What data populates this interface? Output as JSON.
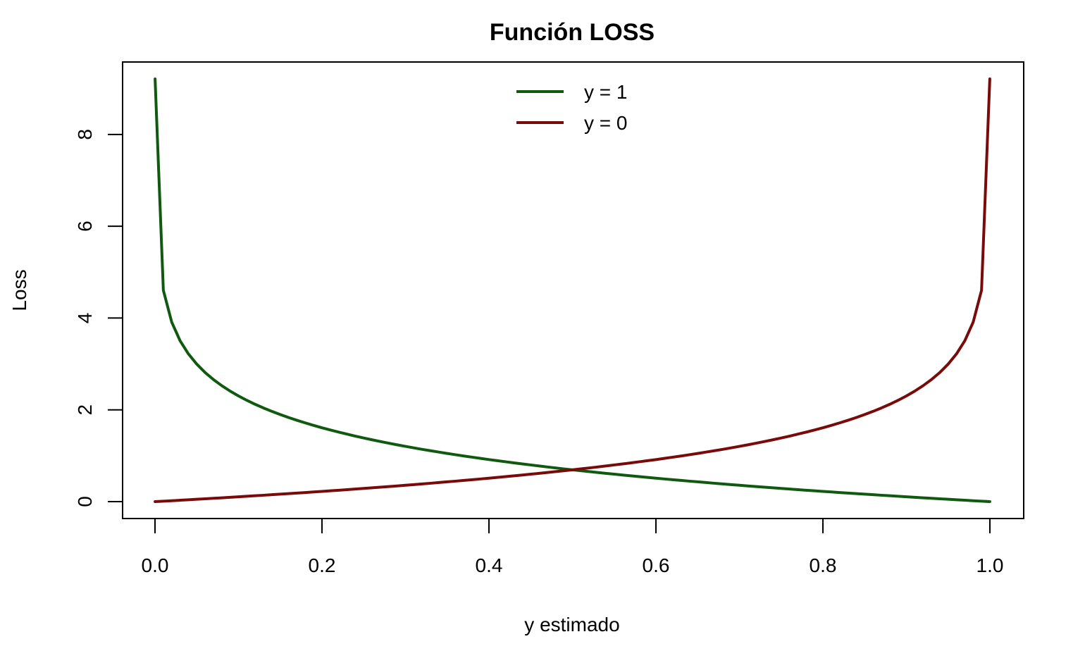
{
  "chart_data": {
    "type": "line",
    "title": "Función LOSS",
    "xlabel": "y estimado",
    "ylabel": "Loss",
    "xlim": [
      0,
      1
    ],
    "ylim": [
      0,
      9.21
    ],
    "x_ticks": [
      "0.0",
      "0.2",
      "0.4",
      "0.6",
      "0.8",
      "1.0"
    ],
    "y_ticks": [
      "0",
      "2",
      "4",
      "6",
      "8"
    ],
    "grid": false,
    "legend_position": "top",
    "x": [
      0.0001,
      0.01,
      0.02,
      0.03,
      0.04,
      0.05,
      0.06,
      0.07,
      0.08,
      0.09,
      0.1,
      0.11,
      0.12,
      0.13,
      0.14,
      0.15,
      0.16,
      0.17,
      0.18,
      0.19,
      0.2,
      0.21,
      0.22,
      0.23,
      0.24,
      0.25,
      0.26,
      0.27,
      0.28,
      0.29,
      0.3,
      0.31,
      0.32,
      0.33,
      0.34,
      0.35,
      0.36,
      0.37,
      0.38,
      0.39,
      0.4,
      0.41,
      0.42,
      0.43,
      0.44,
      0.45,
      0.46,
      0.47,
      0.48,
      0.49,
      0.5,
      0.51,
      0.52,
      0.53,
      0.54,
      0.55,
      0.56,
      0.57,
      0.58,
      0.59,
      0.6,
      0.61,
      0.62,
      0.63,
      0.64,
      0.65,
      0.66,
      0.67,
      0.68,
      0.69,
      0.7,
      0.71,
      0.72,
      0.73,
      0.74,
      0.75,
      0.76,
      0.77,
      0.78,
      0.79,
      0.8,
      0.81,
      0.82,
      0.83,
      0.84,
      0.85,
      0.86,
      0.87,
      0.88,
      0.89,
      0.9,
      0.91,
      0.92,
      0.93,
      0.94,
      0.95,
      0.96,
      0.97,
      0.98,
      0.99,
      0.9999
    ],
    "series": [
      {
        "name": "y = 1",
        "color": "#0f5a0f",
        "values": [
          9.21,
          4.605,
          3.912,
          3.507,
          3.219,
          2.996,
          2.813,
          2.659,
          2.526,
          2.408,
          2.303,
          2.207,
          2.12,
          2.04,
          1.966,
          1.897,
          1.833,
          1.772,
          1.715,
          1.661,
          1.609,
          1.561,
          1.514,
          1.47,
          1.427,
          1.386,
          1.347,
          1.309,
          1.273,
          1.238,
          1.204,
          1.171,
          1.139,
          1.109,
          1.079,
          1.05,
          1.022,
          0.994,
          0.968,
          0.942,
          0.916,
          0.892,
          0.868,
          0.844,
          0.821,
          0.799,
          0.777,
          0.755,
          0.734,
          0.713,
          0.693,
          0.673,
          0.654,
          0.635,
          0.616,
          0.598,
          0.58,
          0.562,
          0.545,
          0.528,
          0.511,
          0.494,
          0.478,
          0.462,
          0.446,
          0.431,
          0.416,
          0.4,
          0.386,
          0.371,
          0.357,
          0.342,
          0.329,
          0.315,
          0.301,
          0.288,
          0.274,
          0.261,
          0.248,
          0.236,
          0.223,
          0.211,
          0.198,
          0.186,
          0.174,
          0.163,
          0.151,
          0.139,
          0.128,
          0.117,
          0.105,
          0.094,
          0.083,
          0.073,
          0.062,
          0.051,
          0.041,
          0.03,
          0.02,
          0.01,
          0.0001
        ]
      },
      {
        "name": "y = 0",
        "color": "#7a0a0a",
        "values": [
          0.0001,
          0.01,
          0.02,
          0.03,
          0.041,
          0.051,
          0.062,
          0.073,
          0.083,
          0.094,
          0.105,
          0.117,
          0.128,
          0.139,
          0.151,
          0.163,
          0.174,
          0.186,
          0.198,
          0.211,
          0.223,
          0.236,
          0.248,
          0.261,
          0.274,
          0.288,
          0.301,
          0.315,
          0.329,
          0.342,
          0.357,
          0.371,
          0.386,
          0.4,
          0.416,
          0.431,
          0.446,
          0.462,
          0.478,
          0.494,
          0.511,
          0.528,
          0.545,
          0.562,
          0.58,
          0.598,
          0.616,
          0.635,
          0.654,
          0.673,
          0.693,
          0.713,
          0.734,
          0.755,
          0.777,
          0.799,
          0.821,
          0.844,
          0.868,
          0.892,
          0.916,
          0.942,
          0.968,
          0.994,
          1.022,
          1.05,
          1.079,
          1.109,
          1.139,
          1.171,
          1.204,
          1.238,
          1.273,
          1.309,
          1.347,
          1.386,
          1.427,
          1.47,
          1.514,
          1.561,
          1.609,
          1.661,
          1.715,
          1.772,
          1.833,
          1.897,
          1.966,
          2.04,
          2.12,
          2.207,
          2.303,
          2.408,
          2.526,
          2.659,
          2.813,
          2.996,
          3.219,
          3.507,
          3.912,
          4.605,
          9.21
        ]
      }
    ]
  }
}
